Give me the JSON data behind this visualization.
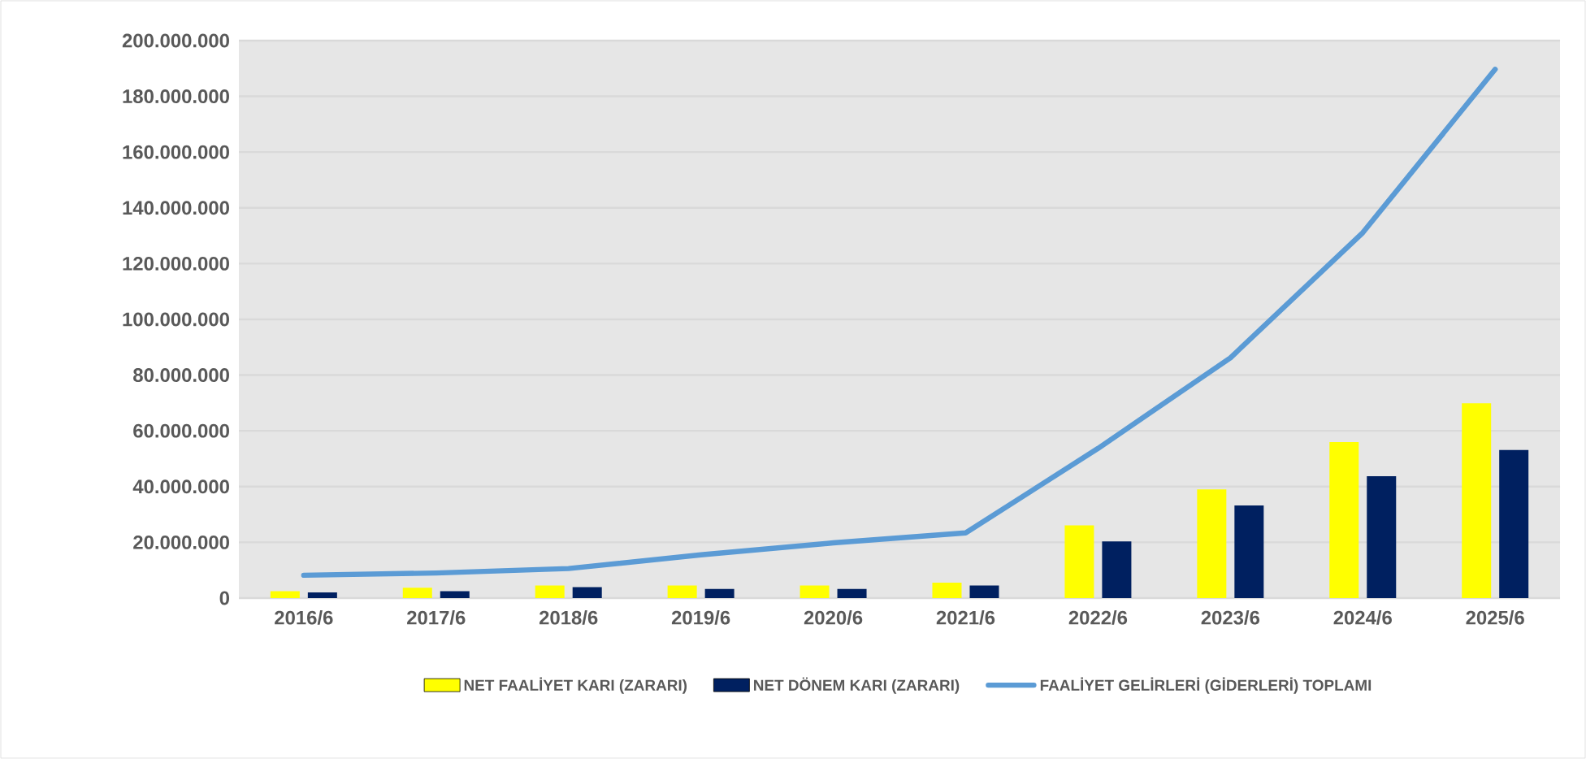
{
  "chart_data": {
    "type": "bar",
    "categories": [
      "2016/6",
      "2017/6",
      "2018/6",
      "2019/6",
      "2020/6",
      "2021/6",
      "2022/6",
      "2023/6",
      "2024/6",
      "2025/6"
    ],
    "series": [
      {
        "name": "NET FAALİYET KARI (ZARARI)",
        "type": "bar",
        "color": "#ffff00",
        "values": [
          2500000,
          3700000,
          4500000,
          4500000,
          4500000,
          5500000,
          26100000,
          39000000,
          56000000,
          69900000
        ]
      },
      {
        "name": "NET DÖNEM KARI (ZARARI)",
        "type": "bar",
        "color": "#002060",
        "values": [
          2000000,
          2500000,
          3900000,
          3300000,
          3300000,
          4500000,
          20300000,
          33200000,
          43700000,
          53100000
        ]
      },
      {
        "name": "FAALİYET GELİRLERİ (GİDERLERİ) TOPLAMI",
        "type": "line",
        "color": "#5b9bd5",
        "values": [
          8200000,
          9000000,
          10600000,
          15500000,
          19800000,
          23400000,
          53700000,
          86200000,
          131100000,
          189700000
        ]
      }
    ],
    "ylim": [
      0,
      200000000
    ],
    "yticks": [
      {
        "value": 0,
        "label": "0"
      },
      {
        "value": 20000000,
        "label": "20.000.000"
      },
      {
        "value": 40000000,
        "label": "40.000.000"
      },
      {
        "value": 60000000,
        "label": "60.000.000"
      },
      {
        "value": 80000000,
        "label": "80.000.000"
      },
      {
        "value": 100000000,
        "label": "100.000.000"
      },
      {
        "value": 120000000,
        "label": "120.000.000"
      },
      {
        "value": 140000000,
        "label": "140.000.000"
      },
      {
        "value": 160000000,
        "label": "160.000.000"
      },
      {
        "value": 180000000,
        "label": "180.000.000"
      },
      {
        "value": 200000000,
        "label": "200.000.000"
      }
    ],
    "grid": "y",
    "legend": "bottom",
    "marker": "none",
    "line_style": "solid"
  }
}
